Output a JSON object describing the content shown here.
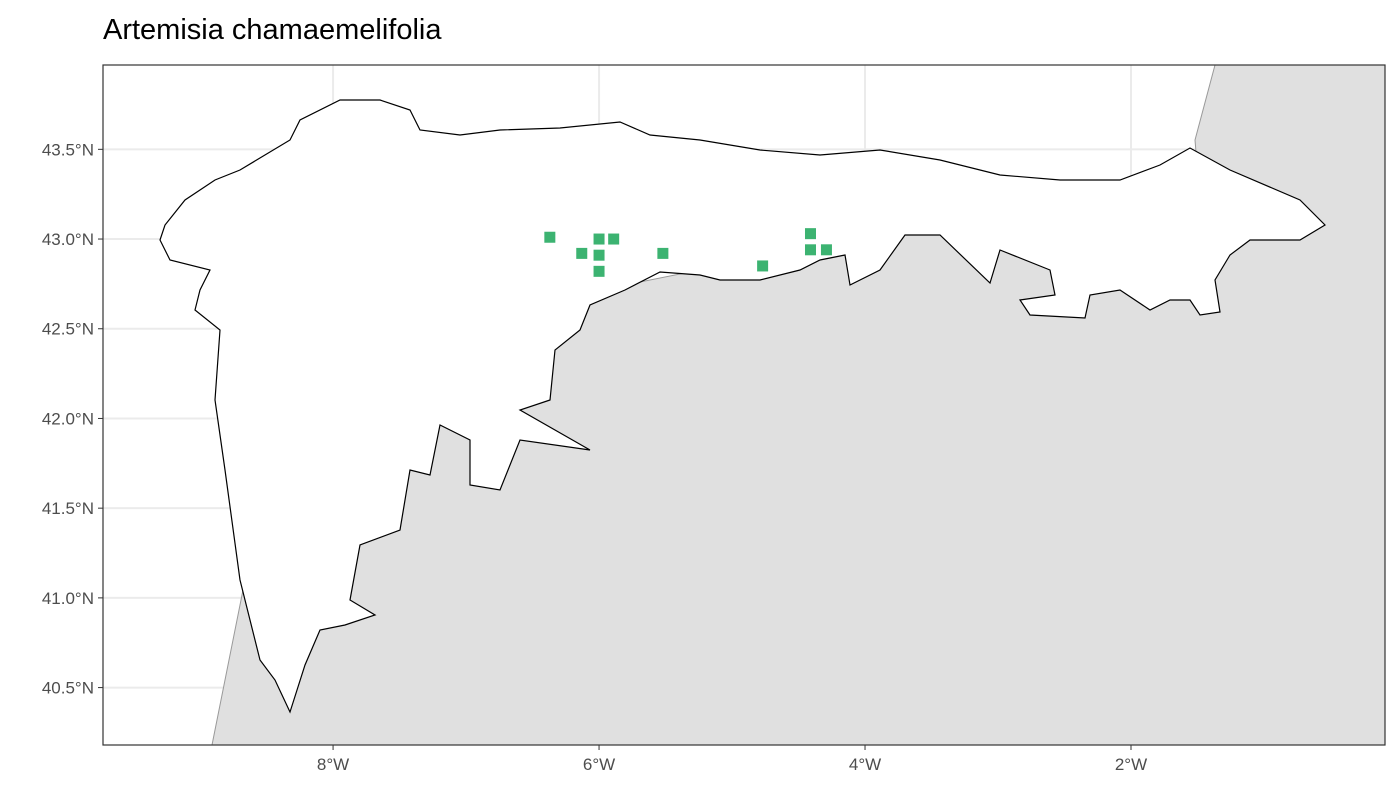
{
  "chart_data": {
    "type": "scatter",
    "title": "Artemisia chamaemelifolia",
    "xlabel": "",
    "ylabel": "",
    "xlim": [
      -9.73,
      -0.09
    ],
    "ylim": [
      40.18,
      43.97
    ],
    "x_ticks": [
      -8,
      -6,
      -4,
      -2
    ],
    "x_tick_labels": [
      "8°W",
      "6°W",
      "4°W",
      "2°W"
    ],
    "y_ticks": [
      40.5,
      41.0,
      41.5,
      42.0,
      42.5,
      43.0,
      43.5
    ],
    "y_tick_labels": [
      "40.5°N",
      "41.0°N",
      "41.5°N",
      "42.0°N",
      "42.5°N",
      "43.0°N",
      "43.5°N"
    ],
    "grid": true,
    "marker": "square",
    "point_color": "#3cb371",
    "land_color": "#e0e0e0",
    "region_color": "#ffffff",
    "points": [
      {
        "lon": -6.37,
        "lat": 43.01
      },
      {
        "lon": -6.13,
        "lat": 42.92
      },
      {
        "lon": -6.0,
        "lat": 43.0
      },
      {
        "lon": -5.89,
        "lat": 43.0
      },
      {
        "lon": -6.0,
        "lat": 42.91
      },
      {
        "lon": -6.0,
        "lat": 42.82
      },
      {
        "lon": -5.52,
        "lat": 42.92
      },
      {
        "lon": -4.77,
        "lat": 42.85
      },
      {
        "lon": -4.41,
        "lat": 43.03
      },
      {
        "lon": -4.41,
        "lat": 42.94
      },
      {
        "lon": -4.29,
        "lat": 42.94
      }
    ]
  }
}
